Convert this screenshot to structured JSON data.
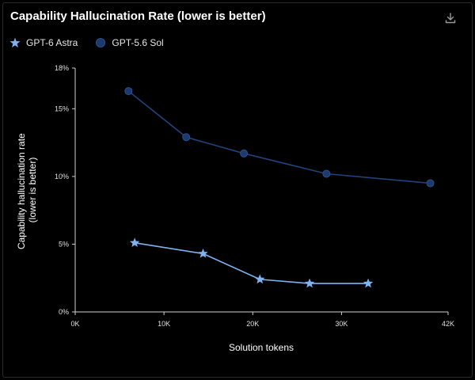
{
  "title": "Capability Hallucination Rate (lower is better)",
  "toolbar": {
    "download_icon": "download-icon"
  },
  "legend": [
    {
      "label": "GPT-6 Astra",
      "marker": "star",
      "color": "#7fb2f0"
    },
    {
      "label": "GPT-5.6 Sol",
      "marker": "circle",
      "color": "#1c3a6e"
    }
  ],
  "chart_data": {
    "type": "line",
    "title": "Capability Hallucination Rate (lower is better)",
    "xlabel": "Solution tokens",
    "ylabel": "Capability hallucination rate (lower is better)",
    "xlim": [
      0,
      42000
    ],
    "ylim": [
      0,
      18
    ],
    "x_ticks": [
      0,
      10000,
      20000,
      30000,
      42000
    ],
    "x_tick_labels": [
      "0K",
      "10K",
      "20K",
      "30K",
      "42K"
    ],
    "y_ticks": [
      0,
      5,
      10,
      15,
      18
    ],
    "y_tick_labels": [
      "0%",
      "5%",
      "10%",
      "15%",
      "18%"
    ],
    "grid": false,
    "legend_position": "top-left",
    "series": [
      {
        "name": "GPT-6 Astra",
        "marker": "star",
        "color": "#7fb2f0",
        "x": [
          6700,
          14400,
          20800,
          26400,
          33000
        ],
        "y": [
          5.1,
          4.3,
          2.4,
          2.1,
          2.1
        ]
      },
      {
        "name": "GPT-5.6 Sol",
        "marker": "circle",
        "color": "#1c3a6e",
        "x": [
          6000,
          12500,
          19000,
          28300,
          40000
        ],
        "y": [
          16.3,
          12.9,
          11.7,
          10.2,
          9.5
        ]
      }
    ]
  }
}
